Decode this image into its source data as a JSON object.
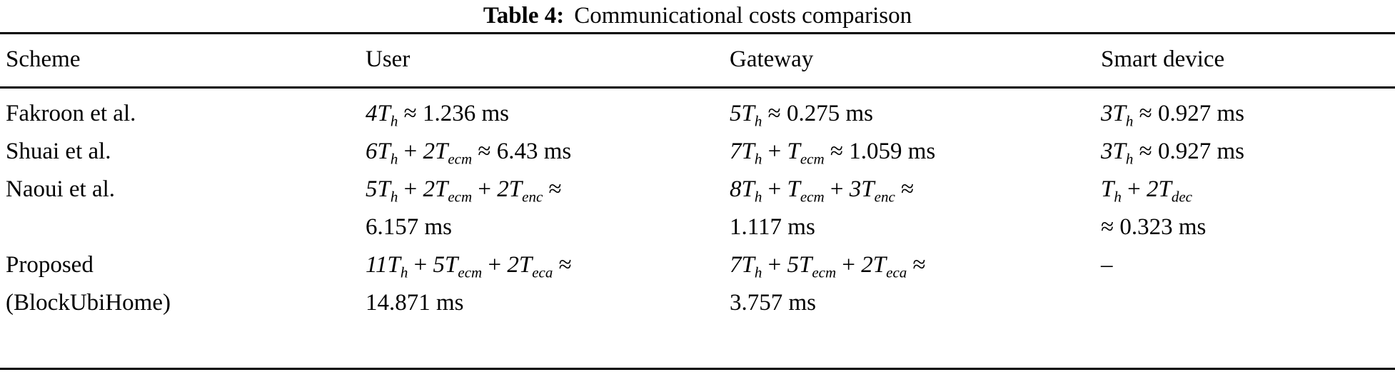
{
  "caption": {
    "label": "Table 4:",
    "title": "Communicational costs comparison"
  },
  "table": {
    "headers": [
      "Scheme",
      "User",
      "Gateway",
      "Smart device"
    ],
    "rows": [
      {
        "scheme": [
          "Fakroon et al."
        ],
        "cells": [
          [
            "4T_h ≈ 1.236 ms"
          ],
          [
            "5T_h ≈ 0.275 ms"
          ],
          [
            "3T_h ≈ 0.927 ms"
          ]
        ]
      },
      {
        "scheme": [
          "Shuai et al."
        ],
        "cells": [
          [
            "6T_h + 2T_ecm ≈ 6.43 ms"
          ],
          [
            "7T_h + T_ecm ≈ 1.059 ms"
          ],
          [
            "3T_h ≈ 0.927 ms"
          ]
        ]
      },
      {
        "scheme": [
          "Naoui et al."
        ],
        "cells": [
          [
            "5T_h + 2T_ecm + 2T_enc ≈",
            "6.157 ms"
          ],
          [
            "8T_h + T_ecm + 3T_enc ≈",
            "1.117 ms"
          ],
          [
            "T_h + 2T_dec",
            "≈ 0.323 ms"
          ]
        ]
      },
      {
        "scheme": [
          "Proposed",
          "(BlockUbiHome)"
        ],
        "cells": [
          [
            "11T_h + 5T_ecm + 2T_eca ≈",
            "14.871 ms"
          ],
          [
            "7T_h + 5T_ecm + 2T_eca ≈",
            "3.757 ms"
          ],
          [
            "–"
          ]
        ]
      }
    ]
  }
}
